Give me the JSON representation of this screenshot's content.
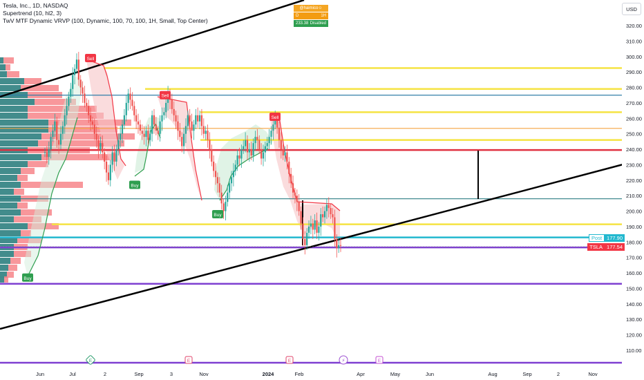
{
  "legend": {
    "symbol_line": "Tesla, Inc., 1D, NASDAQ",
    "indicator1": "Supertrend (10, hl2, 3)",
    "indicator2": "TwV MTF Dynamic VRVP (100, Dynamic, 100, 70, 100, 1H, Small, Top Center)"
  },
  "info_box": {
    "user": "@haimico",
    "tf_left": "D",
    "tf_right": "1H",
    "value": "233.38",
    "status": "Disabled"
  },
  "currency_button": "USD",
  "price_tags": [
    {
      "label": "Post",
      "value": "177.90",
      "color": "#22b8cf"
    },
    {
      "label": "TSLA",
      "value": "177.54",
      "color": "#f23645"
    }
  ],
  "chart_data": {
    "type": "candlestick",
    "symbol": "TSLA",
    "timeframe": "1D",
    "exchange": "NASDAQ",
    "ylim": [
      100,
      325
    ],
    "y_ticks": [
      "110.00",
      "120.00",
      "130.00",
      "140.00",
      "150.00",
      "160.00",
      "170.00",
      "180.00",
      "190.00",
      "200.00",
      "210.00",
      "220.00",
      "230.00",
      "240.00",
      "250.00",
      "260.00",
      "270.00",
      "280.00",
      "290.00",
      "300.00",
      "310.00",
      "320.00"
    ],
    "x_ticks": [
      "Jun",
      "Jul",
      "2",
      "Sep",
      "3",
      "Nov",
      "2024",
      "Feb",
      "Apr",
      "May",
      "Jun",
      "Aug",
      "Sep",
      "2",
      "Nov"
    ],
    "horizontal_levels": [
      {
        "price": 292.5,
        "color": "#f5e342"
      },
      {
        "price": 279,
        "color": "#f5e342"
      },
      {
        "price": 275,
        "color": "#2f7ea8"
      },
      {
        "price": 264,
        "color": "#f5e342"
      },
      {
        "price": 253.5,
        "color": "#f5a340"
      },
      {
        "price": 246,
        "color": "#f5e342"
      },
      {
        "price": 239.5,
        "color": "#e03040"
      },
      {
        "price": 208,
        "color": "#2a7b82"
      },
      {
        "price": 191.5,
        "color": "#f5e342"
      },
      {
        "price": 183,
        "color": "#22b8cf"
      },
      {
        "price": 176.5,
        "color": "#7e3fd1"
      },
      {
        "price": 153,
        "color": "#7e3fd1"
      }
    ],
    "signals": [
      {
        "type": "Sell",
        "price": 299
      },
      {
        "type": "Sell",
        "price": 275
      },
      {
        "type": "Sell",
        "price": 261
      },
      {
        "type": "Buy",
        "price": 217
      },
      {
        "type": "Buy",
        "price": 198
      },
      {
        "type": "Buy",
        "price": 157
      }
    ],
    "closes": [
      238,
      235,
      240,
      248,
      252,
      258,
      246,
      243,
      250,
      255,
      262,
      268,
      274,
      279,
      288,
      292,
      298,
      285,
      280,
      276,
      270,
      268,
      262,
      258,
      256,
      250,
      246,
      240,
      244,
      238,
      232,
      225,
      220,
      230,
      238,
      232,
      240,
      246,
      250,
      256,
      262,
      270,
      276,
      272,
      268,
      262,
      258,
      256,
      252,
      250,
      248,
      252,
      246,
      250,
      262,
      256,
      252,
      250,
      258,
      262,
      264,
      270,
      276,
      272,
      266,
      262,
      258,
      252,
      248,
      242,
      250,
      255,
      262,
      258,
      252,
      256,
      262,
      258,
      262,
      255,
      250,
      252,
      246,
      240,
      232,
      226,
      222,
      218,
      212,
      205,
      200,
      206,
      212,
      218,
      222,
      226,
      230,
      236,
      234,
      240,
      242,
      246,
      238,
      240,
      236,
      244,
      248,
      246,
      240,
      234,
      238,
      242,
      244,
      248,
      252,
      256,
      260,
      254,
      246,
      240,
      236,
      238,
      232,
      224,
      218,
      212,
      210,
      206,
      200,
      192,
      182,
      178,
      186,
      190,
      192,
      188,
      194,
      186,
      190,
      198,
      196,
      200,
      204,
      202,
      198,
      196,
      182,
      176,
      178,
      177.54
    ]
  }
}
